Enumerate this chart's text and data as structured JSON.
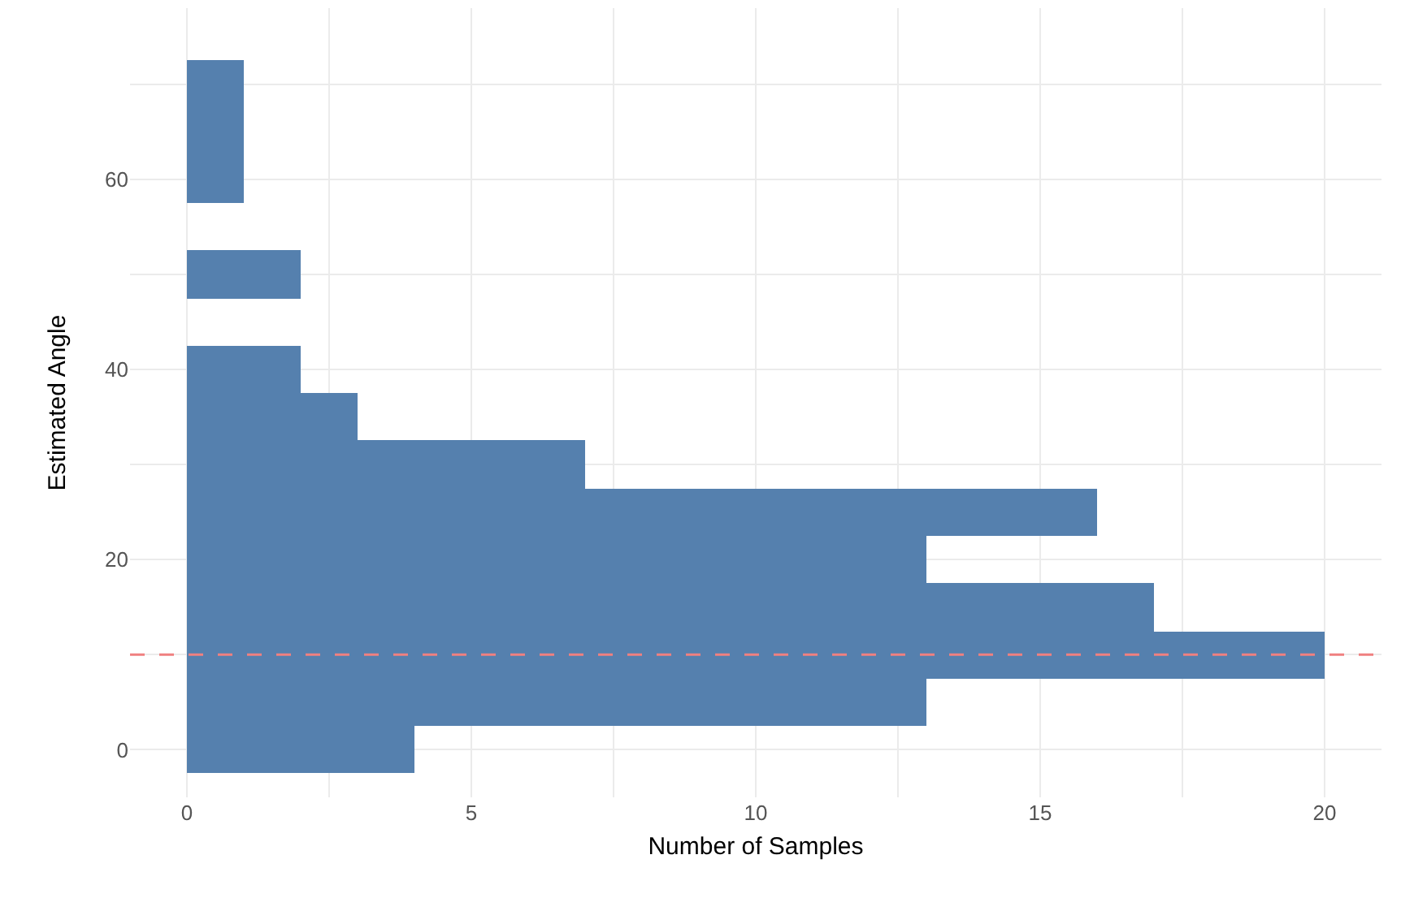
{
  "chart_data": {
    "type": "histogram",
    "orientation": "horizontal",
    "xlabel": "Number of Samples",
    "ylabel": "Estimated Angle",
    "bins": [
      -2.5,
      2.5,
      7.5,
      12.5,
      17.5,
      22.5,
      27.5,
      32.5,
      37.5,
      42.5,
      47.5,
      52.5,
      57.5,
      62.5,
      67.5,
      72.5
    ],
    "values": [
      4,
      13,
      20,
      17,
      13,
      16,
      7,
      3,
      2,
      0,
      2,
      0,
      1,
      1,
      1
    ],
    "color": "#5580ae",
    "xlim": [
      -1,
      21
    ],
    "xticks": [
      0,
      {
        "value": 2.5,
        "label": null
      },
      5,
      {
        "value": 7.5,
        "label": null
      },
      10,
      {
        "value": 12.5,
        "label": null
      },
      15,
      {
        "value": 17.5,
        "label": null
      },
      20
    ],
    "ylim": [
      -5,
      78
    ],
    "yticks": [
      0,
      {
        "value": 10,
        "label": null
      },
      20,
      {
        "value": 30,
        "label": null
      },
      40,
      {
        "value": 50,
        "label": null
      },
      60,
      {
        "value": 70,
        "label": null
      }
    ],
    "grid": true,
    "ref_lines": [
      {
        "axis": "y",
        "value": 10,
        "color": "#f08080",
        "line_style": "dashed"
      }
    ]
  }
}
